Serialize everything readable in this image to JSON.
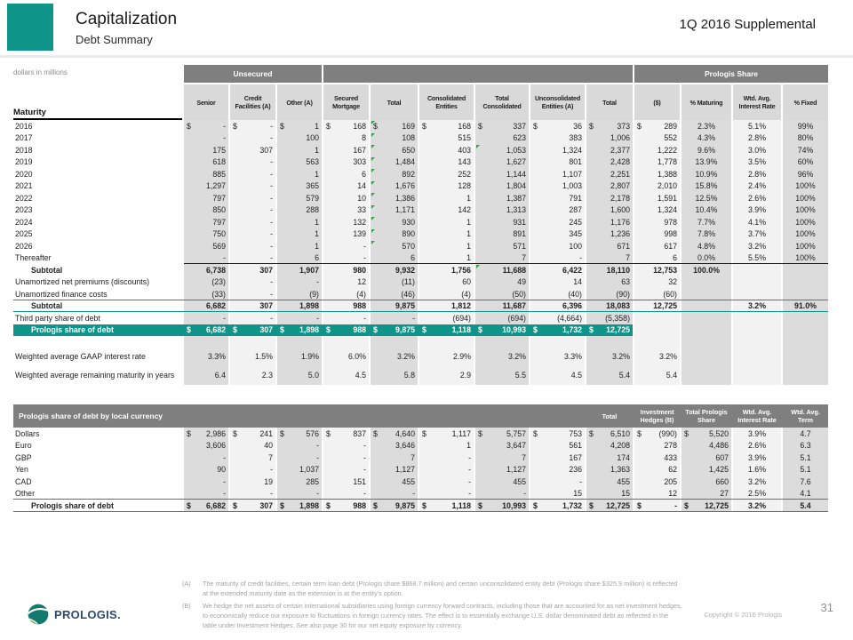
{
  "page": {
    "title": "Capitalization",
    "subtitle": "Debt Summary",
    "top_right": "1Q 2016 Supplemental",
    "units_note": "dollars in millions",
    "logo_bold": "PRO",
    "logo_rest": "LOGIS.",
    "copyright": "Copyright © 2016 Prologis",
    "page_number": "31"
  },
  "colors": {
    "accent_teal": "#0E9488",
    "header_band_gray": "#7F7F7F",
    "column_header_gray": "#D9D9D9",
    "column_shade_dark": "#DCDCDC",
    "column_shade_light": "#F2F2F2",
    "flag_green": "#3E9B49"
  },
  "table1": {
    "row_header": "Maturity",
    "groups": [
      {
        "label": "Unsecured",
        "cols": 3
      },
      {
        "label": "",
        "cols": 6
      },
      {
        "label": "Prologis Share",
        "cols": 4
      }
    ],
    "columns": [
      "Senior",
      "Credit Facilities (A)",
      "Other (A)",
      "Secured Mortgage",
      "Total",
      "Consolidated Entities",
      "Total Consolidated",
      "Unconsolidated Entities (A)",
      "Total",
      "($)",
      "% Maturing",
      "Wtd. Avg. Interest Rate",
      "% Fixed"
    ],
    "rows": [
      {
        "label": "2016",
        "values": [
          "$|-",
          "$|-",
          "$|1",
          "$|168",
          "$|169",
          "$|168",
          "$|337",
          "$|36",
          "$|373",
          "$|289",
          "2.3%",
          "5.1%",
          "99%"
        ],
        "flags": [
          4
        ]
      },
      {
        "label": "2017",
        "values": [
          "-",
          "-",
          "100",
          "8",
          "108",
          "515",
          "623",
          "383",
          "1,006",
          "552",
          "4.3%",
          "2.8%",
          "80%"
        ],
        "flags": [
          4
        ]
      },
      {
        "label": "2018",
        "values": [
          "175",
          "307",
          "1",
          "167",
          "650",
          "403",
          "1,053",
          "1,324",
          "2,377",
          "1,222",
          "9.6%",
          "3.0%",
          "74%"
        ],
        "flags": [
          4,
          6
        ]
      },
      {
        "label": "2019",
        "values": [
          "618",
          "-",
          "563",
          "303",
          "1,484",
          "143",
          "1,627",
          "801",
          "2,428",
          "1,778",
          "13.9%",
          "3.5%",
          "60%"
        ],
        "flags": [
          4
        ]
      },
      {
        "label": "2020",
        "values": [
          "885",
          "-",
          "1",
          "6",
          "892",
          "252",
          "1,144",
          "1,107",
          "2,251",
          "1,388",
          "10.9%",
          "2.8%",
          "96%"
        ],
        "flags": [
          4
        ]
      },
      {
        "label": "2021",
        "values": [
          "1,297",
          "-",
          "365",
          "14",
          "1,676",
          "128",
          "1,804",
          "1,003",
          "2,807",
          "2,010",
          "15.8%",
          "2.4%",
          "100%"
        ],
        "flags": [
          4
        ]
      },
      {
        "label": "2022",
        "values": [
          "797",
          "-",
          "579",
          "10",
          "1,386",
          "1",
          "1,387",
          "791",
          "2,178",
          "1,591",
          "12.5%",
          "2.6%",
          "100%"
        ],
        "flags": [
          4
        ]
      },
      {
        "label": "2023",
        "values": [
          "850",
          "-",
          "288",
          "33",
          "1,171",
          "142",
          "1,313",
          "287",
          "1,600",
          "1,324",
          "10.4%",
          "3.9%",
          "100%"
        ],
        "flags": [
          4
        ]
      },
      {
        "label": "2024",
        "values": [
          "797",
          "-",
          "1",
          "132",
          "930",
          "1",
          "931",
          "245",
          "1,176",
          "978",
          "7.7%",
          "4.1%",
          "100%"
        ],
        "flags": [
          4
        ]
      },
      {
        "label": "2025",
        "values": [
          "750",
          "-",
          "1",
          "139",
          "890",
          "1",
          "891",
          "345",
          "1,236",
          "998",
          "7.8%",
          "3.7%",
          "100%"
        ],
        "flags": [
          4
        ]
      },
      {
        "label": "2026",
        "values": [
          "569",
          "-",
          "1",
          "-",
          "570",
          "1",
          "571",
          "100",
          "671",
          "617",
          "4.8%",
          "3.2%",
          "100%"
        ],
        "flags": [
          4
        ]
      },
      {
        "label": "Thereafter",
        "values": [
          "-",
          "-",
          "6",
          "-",
          "6",
          "1",
          "7",
          "-",
          "7",
          "6",
          "0.0%",
          "5.5%",
          "100%"
        ],
        "border_bottom": "black"
      },
      {
        "label": "Subtotal",
        "type": "subtotal",
        "values": [
          "6,738",
          "307",
          "1,907",
          "980",
          "9,932",
          "1,756",
          "11,688",
          "6,422",
          "18,110",
          "12,753",
          "100.0%",
          "",
          ""
        ],
        "flags": [
          6
        ]
      },
      {
        "label": "Unamortized net premiums (discounts)",
        "values": [
          "(23)",
          "-",
          "-",
          "12",
          "(11)",
          "60",
          "49",
          "14",
          "63",
          "32",
          "",
          "",
          ""
        ]
      },
      {
        "label": "Unamortized finance costs",
        "values": [
          "(33)",
          "-",
          "(9)",
          "(4)",
          "(46)",
          "(4)",
          "(50)",
          "(40)",
          "(90)",
          "(60)",
          "",
          "",
          ""
        ],
        "border_bottom": "teal"
      },
      {
        "label": "Subtotal",
        "type": "subtotal",
        "values": [
          "6,682",
          "307",
          "1,898",
          "988",
          "9,875",
          "1,812",
          "11,687",
          "6,396",
          "18,083",
          "12,725",
          "",
          "3.2%",
          "91.0%"
        ],
        "border_bottom": "teal"
      },
      {
        "label": "Third party share of debt",
        "values": [
          "-",
          "-",
          "-",
          "-",
          "-",
          "(694)",
          "(694)",
          "(4,664)",
          "(5,358)",
          "",
          "",
          "",
          ""
        ]
      },
      {
        "label": "Prologis share of debt",
        "type": "total-teal",
        "values": [
          "$|6,682",
          "$|307",
          "$|1,898",
          "$|988",
          "$|9,875",
          "$|1,118",
          "$|10,993",
          "$|1,732",
          "$|12,725",
          "",
          "",
          "",
          ""
        ]
      }
    ],
    "summary_rows": [
      {
        "label": "Weighted average GAAP interest rate",
        "values": [
          "3.3%",
          "1.5%",
          "1.9%",
          "6.0%",
          "3.2%",
          "2.9%",
          "3.2%",
          "3.3%",
          "3.2%",
          "3.2%",
          "",
          "",
          ""
        ]
      },
      {
        "label": "Weighted average remaining maturity in years",
        "values": [
          "6.4",
          "2.3",
          "5.0",
          "4.5",
          "5.8",
          "2.9",
          "5.5",
          "4.5",
          "5.4",
          "5.4",
          "",
          "",
          ""
        ]
      }
    ]
  },
  "table2": {
    "title": "Prologis share of debt by local currency",
    "columns": [
      "",
      "",
      "",
      "",
      "",
      "",
      "",
      "",
      "Total",
      "Investment Hedges (B)",
      "Total Prologis Share",
      "Wtd. Avg. Interest Rate",
      "Wtd. Avg. Term"
    ],
    "rows": [
      {
        "label": "Dollars",
        "values": [
          "$|2,986",
          "$|241",
          "$|576",
          "$|837",
          "$|4,640",
          "$|1,117",
          "$|5,757",
          "$|753",
          "$|6,510",
          "$|(990)",
          "$|5,520",
          "3.9%",
          "4.7"
        ]
      },
      {
        "label": "Euro",
        "values": [
          "3,606",
          "40",
          "-",
          "-",
          "3,646",
          "1",
          "3,647",
          "561",
          "4,208",
          "278",
          "4,486",
          "2.6%",
          "6.3"
        ]
      },
      {
        "label": "GBP",
        "values": [
          "-",
          "7",
          "-",
          "-",
          "7",
          "-",
          "7",
          "167",
          "174",
          "433",
          "607",
          "3.9%",
          "5.1"
        ]
      },
      {
        "label": "Yen",
        "values": [
          "90",
          "-",
          "1,037",
          "-",
          "1,127",
          "-",
          "1,127",
          "236",
          "1,363",
          "62",
          "1,425",
          "1.6%",
          "5.1"
        ]
      },
      {
        "label": "CAD",
        "values": [
          "-",
          "19",
          "285",
          "151",
          "455",
          "-",
          "455",
          "-",
          "455",
          "205",
          "660",
          "3.2%",
          "7.6"
        ]
      },
      {
        "label": "Other",
        "values": [
          "-",
          "-",
          "-",
          "-",
          "-",
          "-",
          "-",
          "15",
          "15",
          "12",
          "27",
          "2.5%",
          "4.1"
        ],
        "border_bottom": "teal"
      },
      {
        "label": "Prologis share of debt",
        "type": "total-line",
        "values": [
          "$|6,682",
          "$|307",
          "$|1,898",
          "$|988",
          "$|9,875",
          "$|1,118",
          "$|10,993",
          "$|1,732",
          "$|12,725",
          "$|-",
          "$|12,725",
          "3.2%",
          "5.4"
        ],
        "border_bottom": "teal"
      }
    ]
  },
  "footnotes": [
    {
      "marker": "(A)",
      "text": "The maturity of credit facilities, certain term loan debt (Prologis share $868.7 million) and certain unconsolidated entity debt (Prologis share $325.9 million) is reflected at the extended maturity date as the extension is at the entity's option."
    },
    {
      "marker": "(B)",
      "text": "We hedge the net assets of certain international subsidiaries using foreign currency forward contracts, including those that are accounted for as net investment hedges, to economically reduce our exposure to fluctuations in foreign currency rates. The effect is to essentially exchange U.S. dollar denominated debt as reflected in the table under Investment Hedges. See also page 30 for our net equity exposure by currency."
    }
  ]
}
